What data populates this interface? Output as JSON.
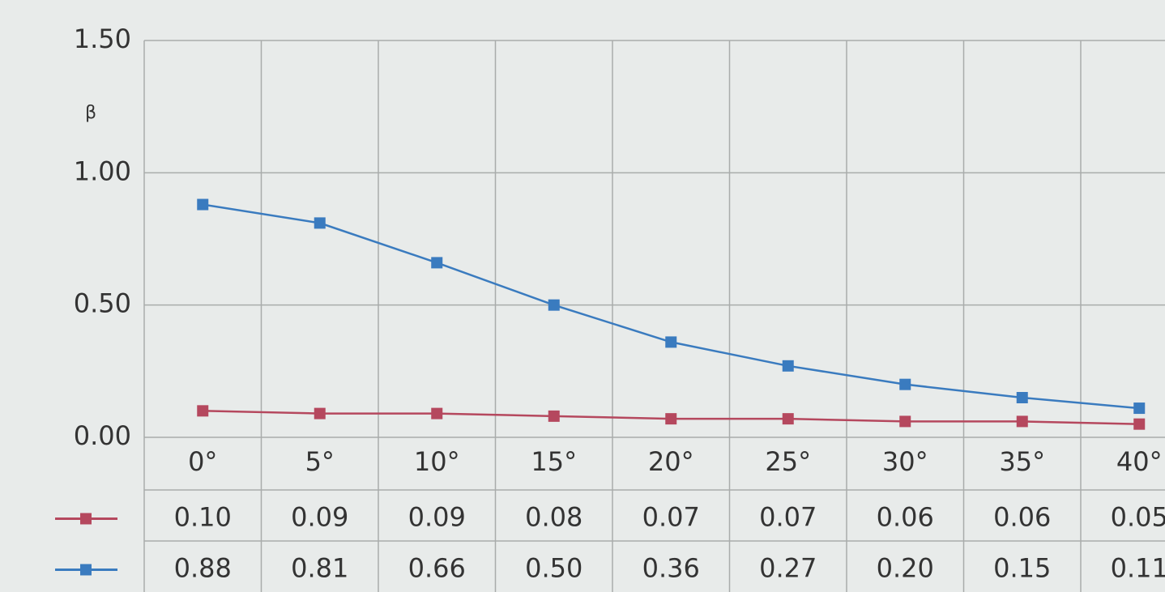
{
  "chart_data": {
    "type": "line",
    "ylabel": "β",
    "categories": [
      "0°",
      "5°",
      "10°",
      "15°",
      "20°",
      "25°",
      "30°",
      "35°",
      "40°"
    ],
    "series": [
      {
        "color": "#b5485e",
        "values": [
          0.1,
          0.09,
          0.09,
          0.08,
          0.07,
          0.07,
          0.06,
          0.06,
          0.05
        ],
        "value_labels": [
          "0.10",
          "0.09",
          "0.09",
          "0.08",
          "0.07",
          "0.07",
          "0.06",
          "0.06",
          "0.05"
        ]
      },
      {
        "color": "#3a7bbf",
        "values": [
          0.88,
          0.81,
          0.66,
          0.5,
          0.36,
          0.27,
          0.2,
          0.15,
          0.11
        ],
        "value_labels": [
          "0.88",
          "0.81",
          "0.66",
          "0.50",
          "0.36",
          "0.27",
          "0.20",
          "0.15",
          "0.11"
        ]
      }
    ],
    "ylim": [
      0,
      1.5
    ],
    "yticks": [
      {
        "value": 0,
        "label": "0.00"
      },
      {
        "value": 0.5,
        "label": "0.50"
      },
      {
        "value": 1,
        "label": "1.00"
      },
      {
        "value": 1.5,
        "label": "1.50"
      }
    ],
    "grid": true
  }
}
